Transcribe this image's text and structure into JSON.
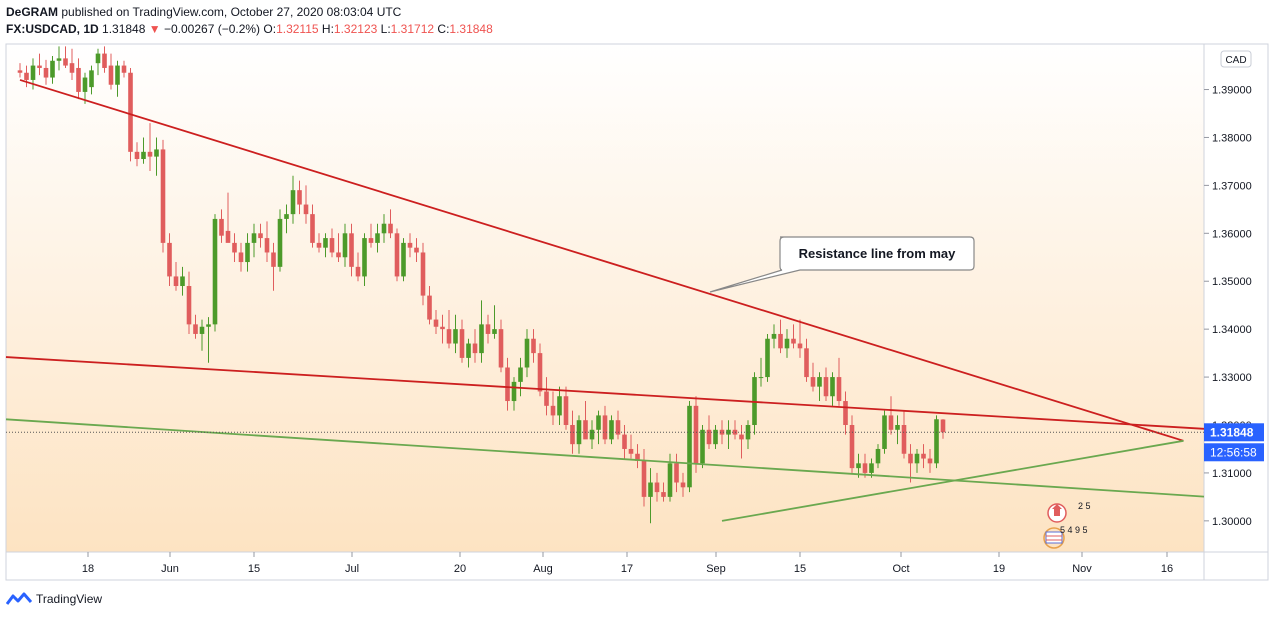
{
  "header": {
    "author": "DeGRAM",
    "published_text": "published on TradingView.com, October 27, 2020 08:03:04 UTC"
  },
  "ohlc": {
    "symbol": "FX:USDCAD, 1D",
    "last": "1.31848",
    "change": "−0.00267 (−0.2%)",
    "o_label": "O:",
    "o": "1.32115",
    "h_label": "H:",
    "h": "1.32123",
    "l_label": "L:",
    "l": "1.31712",
    "c_label": "C:",
    "c": "1.31848"
  },
  "axis": {
    "currency": "CAD",
    "price_ticks": [
      "1.39000",
      "1.38000",
      "1.37000",
      "1.36000",
      "1.35000",
      "1.34000",
      "1.33000",
      "1.32000",
      "1.31000",
      "1.30000"
    ],
    "last_price": "1.31848",
    "countdown": "12:56:58",
    "date_ticks": [
      "18",
      "Jun",
      "15",
      "Jul",
      "20",
      "Aug",
      "17",
      "Sep",
      "15",
      "Oct",
      "19",
      "Nov",
      "16"
    ]
  },
  "annotation": {
    "text": "Resistance line from may"
  },
  "events": [
    {
      "flag": "CAD",
      "count": "2 5"
    },
    {
      "flag": "USD",
      "count": "5 4 9 5"
    }
  ],
  "footer": {
    "brand": "TradingView"
  },
  "colors": {
    "up": "#4c9a2a",
    "down": "#e05d5d",
    "resistance": "#cc1f1f",
    "support": "#6aa84f",
    "last_label": "#2962ff"
  },
  "chart_data": {
    "type": "candlestick",
    "symbol": "USDCAD",
    "timeframe": "1D",
    "y_range": [
      1.2935,
      1.3995
    ],
    "candles": [
      {
        "o": 1.394,
        "h": 1.3955,
        "l": 1.3925,
        "c": 1.3935
      },
      {
        "o": 1.3935,
        "h": 1.395,
        "l": 1.3905,
        "c": 1.392
      },
      {
        "o": 1.392,
        "h": 1.3965,
        "l": 1.39,
        "c": 1.395
      },
      {
        "o": 1.395,
        "h": 1.3975,
        "l": 1.393,
        "c": 1.3945
      },
      {
        "o": 1.3945,
        "h": 1.3962,
        "l": 1.391,
        "c": 1.3925
      },
      {
        "o": 1.3925,
        "h": 1.397,
        "l": 1.3912,
        "c": 1.396
      },
      {
        "o": 1.396,
        "h": 1.399,
        "l": 1.394,
        "c": 1.3965
      },
      {
        "o": 1.3965,
        "h": 1.399,
        "l": 1.3945,
        "c": 1.395
      },
      {
        "o": 1.3955,
        "h": 1.3985,
        "l": 1.392,
        "c": 1.3935
      },
      {
        "o": 1.3945,
        "h": 1.3965,
        "l": 1.388,
        "c": 1.3895
      },
      {
        "o": 1.3895,
        "h": 1.3935,
        "l": 1.387,
        "c": 1.3925
      },
      {
        "o": 1.3905,
        "h": 1.395,
        "l": 1.389,
        "c": 1.394
      },
      {
        "o": 1.3955,
        "h": 1.3985,
        "l": 1.393,
        "c": 1.3975
      },
      {
        "o": 1.3975,
        "h": 1.399,
        "l": 1.3935,
        "c": 1.3945
      },
      {
        "o": 1.395,
        "h": 1.3975,
        "l": 1.39,
        "c": 1.391
      },
      {
        "o": 1.391,
        "h": 1.396,
        "l": 1.3885,
        "c": 1.395
      },
      {
        "o": 1.395,
        "h": 1.396,
        "l": 1.3925,
        "c": 1.3935
      },
      {
        "o": 1.3935,
        "h": 1.3945,
        "l": 1.375,
        "c": 1.377
      },
      {
        "o": 1.377,
        "h": 1.379,
        "l": 1.374,
        "c": 1.3755
      },
      {
        "o": 1.3755,
        "h": 1.38,
        "l": 1.3745,
        "c": 1.377
      },
      {
        "o": 1.377,
        "h": 1.383,
        "l": 1.373,
        "c": 1.376
      },
      {
        "o": 1.376,
        "h": 1.38,
        "l": 1.372,
        "c": 1.3775
      },
      {
        "o": 1.3775,
        "h": 1.3795,
        "l": 1.356,
        "c": 1.358
      },
      {
        "o": 1.358,
        "h": 1.36,
        "l": 1.349,
        "c": 1.351
      },
      {
        "o": 1.351,
        "h": 1.354,
        "l": 1.348,
        "c": 1.349
      },
      {
        "o": 1.349,
        "h": 1.353,
        "l": 1.347,
        "c": 1.351
      },
      {
        "o": 1.349,
        "h": 1.352,
        "l": 1.339,
        "c": 1.341
      },
      {
        "o": 1.341,
        "h": 1.343,
        "l": 1.338,
        "c": 1.339
      },
      {
        "o": 1.339,
        "h": 1.342,
        "l": 1.3355,
        "c": 1.3405
      },
      {
        "o": 1.3405,
        "h": 1.3425,
        "l": 1.333,
        "c": 1.341
      },
      {
        "o": 1.341,
        "h": 1.364,
        "l": 1.3395,
        "c": 1.363
      },
      {
        "o": 1.363,
        "h": 1.365,
        "l": 1.358,
        "c": 1.3595
      },
      {
        "o": 1.3605,
        "h": 1.3685,
        "l": 1.359,
        "c": 1.358
      },
      {
        "o": 1.358,
        "h": 1.36,
        "l": 1.354,
        "c": 1.356
      },
      {
        "o": 1.356,
        "h": 1.358,
        "l": 1.352,
        "c": 1.354
      },
      {
        "o": 1.354,
        "h": 1.36,
        "l": 1.352,
        "c": 1.358
      },
      {
        "o": 1.358,
        "h": 1.362,
        "l": 1.355,
        "c": 1.36
      },
      {
        "o": 1.36,
        "h": 1.362,
        "l": 1.357,
        "c": 1.359
      },
      {
        "o": 1.359,
        "h": 1.3625,
        "l": 1.354,
        "c": 1.356
      },
      {
        "o": 1.356,
        "h": 1.358,
        "l": 1.348,
        "c": 1.353
      },
      {
        "o": 1.353,
        "h": 1.365,
        "l": 1.352,
        "c": 1.363
      },
      {
        "o": 1.363,
        "h": 1.366,
        "l": 1.36,
        "c": 1.364
      },
      {
        "o": 1.364,
        "h": 1.372,
        "l": 1.362,
        "c": 1.369
      },
      {
        "o": 1.369,
        "h": 1.371,
        "l": 1.364,
        "c": 1.366
      },
      {
        "o": 1.366,
        "h": 1.37,
        "l": 1.362,
        "c": 1.364
      },
      {
        "o": 1.364,
        "h": 1.366,
        "l": 1.357,
        "c": 1.358
      },
      {
        "o": 1.358,
        "h": 1.36,
        "l": 1.356,
        "c": 1.357
      },
      {
        "o": 1.357,
        "h": 1.36,
        "l": 1.355,
        "c": 1.359
      },
      {
        "o": 1.359,
        "h": 1.361,
        "l": 1.355,
        "c": 1.356
      },
      {
        "o": 1.356,
        "h": 1.36,
        "l": 1.354,
        "c": 1.355
      },
      {
        "o": 1.355,
        "h": 1.362,
        "l": 1.353,
        "c": 1.36
      },
      {
        "o": 1.36,
        "h": 1.362,
        "l": 1.351,
        "c": 1.353
      },
      {
        "o": 1.353,
        "h": 1.356,
        "l": 1.35,
        "c": 1.351
      },
      {
        "o": 1.351,
        "h": 1.36,
        "l": 1.349,
        "c": 1.359
      },
      {
        "o": 1.359,
        "h": 1.362,
        "l": 1.357,
        "c": 1.358
      },
      {
        "o": 1.358,
        "h": 1.362,
        "l": 1.356,
        "c": 1.36
      },
      {
        "o": 1.36,
        "h": 1.364,
        "l": 1.358,
        "c": 1.362
      },
      {
        "o": 1.362,
        "h": 1.365,
        "l": 1.359,
        "c": 1.36
      },
      {
        "o": 1.36,
        "h": 1.361,
        "l": 1.35,
        "c": 1.351
      },
      {
        "o": 1.351,
        "h": 1.359,
        "l": 1.35,
        "c": 1.358
      },
      {
        "o": 1.358,
        "h": 1.36,
        "l": 1.355,
        "c": 1.357
      },
      {
        "o": 1.357,
        "h": 1.359,
        "l": 1.354,
        "c": 1.356
      },
      {
        "o": 1.356,
        "h": 1.358,
        "l": 1.345,
        "c": 1.347
      },
      {
        "o": 1.347,
        "h": 1.349,
        "l": 1.341,
        "c": 1.342
      },
      {
        "o": 1.342,
        "h": 1.344,
        "l": 1.339,
        "c": 1.3405
      },
      {
        "o": 1.3405,
        "h": 1.343,
        "l": 1.337,
        "c": 1.34
      },
      {
        "o": 1.34,
        "h": 1.344,
        "l": 1.336,
        "c": 1.337
      },
      {
        "o": 1.337,
        "h": 1.343,
        "l": 1.335,
        "c": 1.34
      },
      {
        "o": 1.34,
        "h": 1.342,
        "l": 1.333,
        "c": 1.334
      },
      {
        "o": 1.334,
        "h": 1.338,
        "l": 1.332,
        "c": 1.337
      },
      {
        "o": 1.337,
        "h": 1.34,
        "l": 1.333,
        "c": 1.335
      },
      {
        "o": 1.335,
        "h": 1.346,
        "l": 1.333,
        "c": 1.341
      },
      {
        "o": 1.341,
        "h": 1.343,
        "l": 1.337,
        "c": 1.339
      },
      {
        "o": 1.339,
        "h": 1.345,
        "l": 1.338,
        "c": 1.34
      },
      {
        "o": 1.34,
        "h": 1.342,
        "l": 1.331,
        "c": 1.332
      },
      {
        "o": 1.332,
        "h": 1.334,
        "l": 1.323,
        "c": 1.325
      },
      {
        "o": 1.325,
        "h": 1.33,
        "l": 1.323,
        "c": 1.329
      },
      {
        "o": 1.329,
        "h": 1.334,
        "l": 1.326,
        "c": 1.332
      },
      {
        "o": 1.332,
        "h": 1.34,
        "l": 1.33,
        "c": 1.338
      },
      {
        "o": 1.338,
        "h": 1.34,
        "l": 1.333,
        "c": 1.335
      },
      {
        "o": 1.335,
        "h": 1.337,
        "l": 1.326,
        "c": 1.327
      },
      {
        "o": 1.327,
        "h": 1.33,
        "l": 1.322,
        "c": 1.324
      },
      {
        "o": 1.324,
        "h": 1.327,
        "l": 1.32,
        "c": 1.322
      },
      {
        "o": 1.322,
        "h": 1.328,
        "l": 1.32,
        "c": 1.326
      },
      {
        "o": 1.326,
        "h": 1.328,
        "l": 1.319,
        "c": 1.32
      },
      {
        "o": 1.32,
        "h": 1.323,
        "l": 1.314,
        "c": 1.316
      },
      {
        "o": 1.316,
        "h": 1.322,
        "l": 1.314,
        "c": 1.321
      },
      {
        "o": 1.321,
        "h": 1.325,
        "l": 1.318,
        "c": 1.317
      },
      {
        "o": 1.317,
        "h": 1.321,
        "l": 1.315,
        "c": 1.319
      },
      {
        "o": 1.319,
        "h": 1.323,
        "l": 1.316,
        "c": 1.322
      },
      {
        "o": 1.322,
        "h": 1.324,
        "l": 1.316,
        "c": 1.317
      },
      {
        "o": 1.317,
        "h": 1.322,
        "l": 1.316,
        "c": 1.321
      },
      {
        "o": 1.321,
        "h": 1.323,
        "l": 1.317,
        "c": 1.318
      },
      {
        "o": 1.318,
        "h": 1.32,
        "l": 1.313,
        "c": 1.315
      },
      {
        "o": 1.315,
        "h": 1.318,
        "l": 1.313,
        "c": 1.314
      },
      {
        "o": 1.314,
        "h": 1.316,
        "l": 1.311,
        "c": 1.3125
      },
      {
        "o": 1.3125,
        "h": 1.315,
        "l": 1.303,
        "c": 1.305
      },
      {
        "o": 1.305,
        "h": 1.311,
        "l": 1.2995,
        "c": 1.308
      },
      {
        "o": 1.308,
        "h": 1.31,
        "l": 1.304,
        "c": 1.306
      },
      {
        "o": 1.306,
        "h": 1.308,
        "l": 1.304,
        "c": 1.305
      },
      {
        "o": 1.305,
        "h": 1.314,
        "l": 1.304,
        "c": 1.312
      },
      {
        "o": 1.312,
        "h": 1.314,
        "l": 1.306,
        "c": 1.308
      },
      {
        "o": 1.308,
        "h": 1.31,
        "l": 1.305,
        "c": 1.307
      },
      {
        "o": 1.307,
        "h": 1.325,
        "l": 1.306,
        "c": 1.324
      },
      {
        "o": 1.324,
        "h": 1.326,
        "l": 1.31,
        "c": 1.312
      },
      {
        "o": 1.312,
        "h": 1.32,
        "l": 1.311,
        "c": 1.319
      },
      {
        "o": 1.319,
        "h": 1.322,
        "l": 1.315,
        "c": 1.316
      },
      {
        "o": 1.316,
        "h": 1.32,
        "l": 1.315,
        "c": 1.319
      },
      {
        "o": 1.319,
        "h": 1.321,
        "l": 1.316,
        "c": 1.318
      },
      {
        "o": 1.318,
        "h": 1.321,
        "l": 1.315,
        "c": 1.319
      },
      {
        "o": 1.319,
        "h": 1.321,
        "l": 1.317,
        "c": 1.318
      },
      {
        "o": 1.318,
        "h": 1.32,
        "l": 1.313,
        "c": 1.317
      },
      {
        "o": 1.317,
        "h": 1.321,
        "l": 1.315,
        "c": 1.32
      },
      {
        "o": 1.32,
        "h": 1.331,
        "l": 1.318,
        "c": 1.33
      },
      {
        "o": 1.33,
        "h": 1.334,
        "l": 1.328,
        "c": 1.33
      },
      {
        "o": 1.33,
        "h": 1.339,
        "l": 1.329,
        "c": 1.338
      },
      {
        "o": 1.338,
        "h": 1.341,
        "l": 1.336,
        "c": 1.339
      },
      {
        "o": 1.339,
        "h": 1.342,
        "l": 1.335,
        "c": 1.336
      },
      {
        "o": 1.336,
        "h": 1.34,
        "l": 1.334,
        "c": 1.338
      },
      {
        "o": 1.338,
        "h": 1.341,
        "l": 1.336,
        "c": 1.337
      },
      {
        "o": 1.337,
        "h": 1.342,
        "l": 1.334,
        "c": 1.336
      },
      {
        "o": 1.336,
        "h": 1.338,
        "l": 1.329,
        "c": 1.33
      },
      {
        "o": 1.33,
        "h": 1.333,
        "l": 1.327,
        "c": 1.328
      },
      {
        "o": 1.328,
        "h": 1.331,
        "l": 1.325,
        "c": 1.33
      },
      {
        "o": 1.33,
        "h": 1.332,
        "l": 1.325,
        "c": 1.326
      },
      {
        "o": 1.326,
        "h": 1.331,
        "l": 1.324,
        "c": 1.33
      },
      {
        "o": 1.33,
        "h": 1.334,
        "l": 1.324,
        "c": 1.325
      },
      {
        "o": 1.325,
        "h": 1.327,
        "l": 1.318,
        "c": 1.32
      },
      {
        "o": 1.32,
        "h": 1.322,
        "l": 1.31,
        "c": 1.311
      },
      {
        "o": 1.311,
        "h": 1.314,
        "l": 1.309,
        "c": 1.312
      },
      {
        "o": 1.312,
        "h": 1.314,
        "l": 1.309,
        "c": 1.31
      },
      {
        "o": 1.31,
        "h": 1.313,
        "l": 1.309,
        "c": 1.312
      },
      {
        "o": 1.312,
        "h": 1.316,
        "l": 1.311,
        "c": 1.315
      },
      {
        "o": 1.315,
        "h": 1.323,
        "l": 1.314,
        "c": 1.322
      },
      {
        "o": 1.322,
        "h": 1.326,
        "l": 1.318,
        "c": 1.319
      },
      {
        "o": 1.319,
        "h": 1.322,
        "l": 1.316,
        "c": 1.32
      },
      {
        "o": 1.32,
        "h": 1.323,
        "l": 1.313,
        "c": 1.314
      },
      {
        "o": 1.314,
        "h": 1.316,
        "l": 1.308,
        "c": 1.312
      },
      {
        "o": 1.312,
        "h": 1.315,
        "l": 1.31,
        "c": 1.314
      },
      {
        "o": 1.314,
        "h": 1.316,
        "l": 1.311,
        "c": 1.313
      },
      {
        "o": 1.313,
        "h": 1.315,
        "l": 1.31,
        "c": 1.312
      },
      {
        "o": 1.312,
        "h": 1.322,
        "l": 1.311,
        "c": 1.3212
      },
      {
        "o": 1.32115,
        "h": 1.32123,
        "l": 1.31712,
        "c": 1.31848
      }
    ],
    "trendlines": [
      {
        "name": "Resistance line from may",
        "color": "#cc1f1f",
        "from": [
          0,
          1.392
        ],
        "to": [
          "2020-11-19",
          1.3167
        ]
      },
      {
        "name": "",
        "color": "#cc1f1f",
        "from": [
          0,
          1.334
        ],
        "to": [
          160,
          1.321
        ]
      },
      {
        "name": "",
        "color": "#6aa84f",
        "from": [
          0,
          1.321
        ],
        "to": [
          160,
          1.307
        ]
      },
      {
        "name": "",
        "color": "#6aa84f",
        "from": [
          "2020-09-01",
          1.3
        ],
        "to": [
          "2020-11-19",
          1.3167
        ]
      }
    ]
  }
}
